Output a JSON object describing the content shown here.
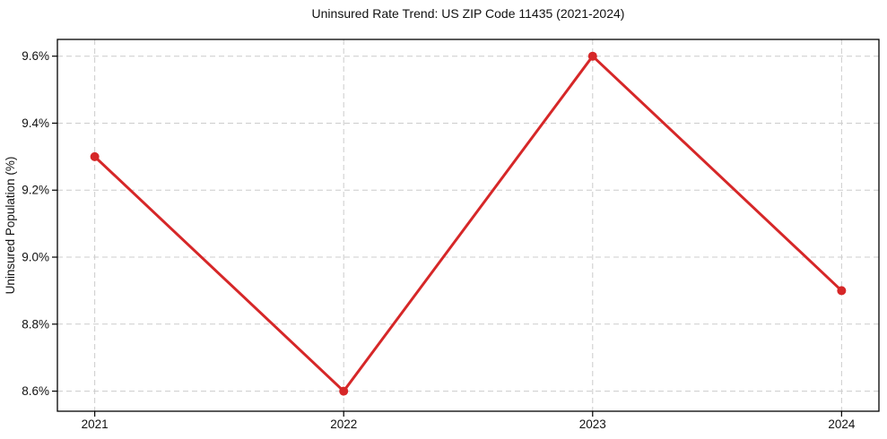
{
  "figure": {
    "title": "Uninsured Rate Trend: US ZIP Code 11435 (2021-2024)"
  },
  "chart_data": {
    "type": "line",
    "title": "Uninsured Rate Trend: US ZIP Code 11435 (2021-2024)",
    "xlabel": "",
    "ylabel": "Uninsured Population (%)",
    "x": [
      2021,
      2022,
      2023,
      2024
    ],
    "values": [
      9.3,
      8.6,
      9.6,
      8.9
    ],
    "x_tick_labels": [
      "2021",
      "2022",
      "2023",
      "2024"
    ],
    "y_ticks": [
      8.6,
      8.8,
      9.0,
      9.2,
      9.4,
      9.6
    ],
    "y_tick_labels": [
      "8.6%",
      "8.8%",
      "9.0%",
      "9.2%",
      "9.4%",
      "9.6%"
    ],
    "xlim": [
      2020.85,
      2024.15
    ],
    "ylim": [
      8.54,
      9.65
    ],
    "grid": true,
    "grid_style": "dashed",
    "legend": "none",
    "colors": {
      "line": "#d62728",
      "marker": "#d62728",
      "grid": "#cccccc",
      "spine": "#000000",
      "text": "#111111",
      "background": "#ffffff"
    }
  }
}
